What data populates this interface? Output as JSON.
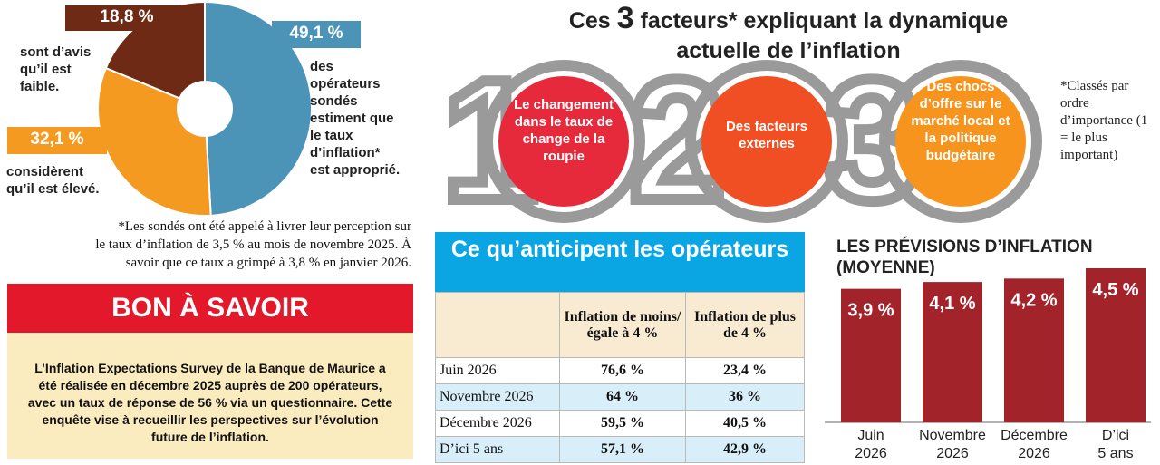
{
  "donut": {
    "chart_data": {
      "type": "pie",
      "slices": [
        {
          "label": "sont d'avis qu'il est faible.",
          "value": 18.8,
          "display": "18,8 %",
          "color": "#6e2a14"
        },
        {
          "label": "des opérateurs sondés estiment que le taux d'inflation* est approprié.",
          "value": 49.1,
          "display": "49,1 %",
          "color": "#4b93b7"
        },
        {
          "label": "considèrent qu'il est élevé.",
          "value": 32.1,
          "display": "32,1 %",
          "color": "#f59a20"
        }
      ]
    },
    "text_faible": [
      "sont d’avis",
      "qu’il est",
      "faible."
    ],
    "text_approprie": [
      "des",
      "opérateurs",
      "sondés",
      "estiment que",
      "le taux",
      "d’inflation*",
      "est approprié."
    ],
    "text_eleve": [
      "considèrent",
      "qu’il est élevé."
    ],
    "note": [
      "*Les sondés ont été appelé à livrer leur perception sur",
      "le taux d’inflation de 3,5 % au mois de novembre 2025. À",
      "savoir que ce taux a grimpé à 3,8 % en janvier 2026."
    ]
  },
  "bon_a_savoir": {
    "title": "BON À SAVOIR",
    "text": "L’Inflation Expectations Survey de la Banque de Maurice a été réalisée en décembre 2025 auprès de 200 opérateurs, avec un taux de réponse de 56 % via un questionnaire. Cette enquête vise à recueillir les perspectives sur l’évolution future de l’inflation."
  },
  "factors": {
    "title_pre": "Ces",
    "title_num": "3",
    "title_post": "facteurs* expliquant la dynamique",
    "title_line2": "actuelle de l’inflation",
    "numbers": [
      "1",
      "2",
      "3"
    ],
    "items": [
      {
        "text": "Le changement dans le taux de change de la roupie",
        "color": "#e62a3b"
      },
      {
        "text": "Des facteurs externes",
        "color": "#f04e23"
      },
      {
        "text": "Des chocs d’offre sur le marché local et la politique budgétaire",
        "color": "#f7941d"
      }
    ],
    "note": "*Classés par ordre d’importance (1 = le plus important)"
  },
  "anticipations": {
    "title": "Ce qu’anticipent les opérateurs",
    "columns": [
      "",
      "Inflation de moins/égale à 4 %",
      "Inflation de plus de 4 %"
    ],
    "rows": [
      [
        "Juin 2026",
        "76,6 %",
        "23,4 %"
      ],
      [
        "Novembre 2026",
        "64 %",
        "36 %"
      ],
      [
        "Décembre 2026",
        "59,5 %",
        "40,5 %"
      ],
      [
        "D’ici 5 ans",
        "57,1 %",
        "42,9 %"
      ]
    ]
  },
  "previsions": {
    "title": "LES PRÉVISIONS D’INFLATION (MOYENNE)",
    "chart_data": {
      "type": "bar",
      "categories": [
        [
          "Juin",
          "2026"
        ],
        [
          "Novembre",
          "2026"
        ],
        [
          "Décembre",
          "2026"
        ],
        [
          "D’ici",
          "5 ans"
        ]
      ],
      "values": [
        3.9,
        4.1,
        4.2,
        4.5
      ],
      "labels": [
        "3,9 %",
        "4,1 %",
        "4,2 %",
        "4,5 %"
      ],
      "color": "#a3232b"
    }
  }
}
